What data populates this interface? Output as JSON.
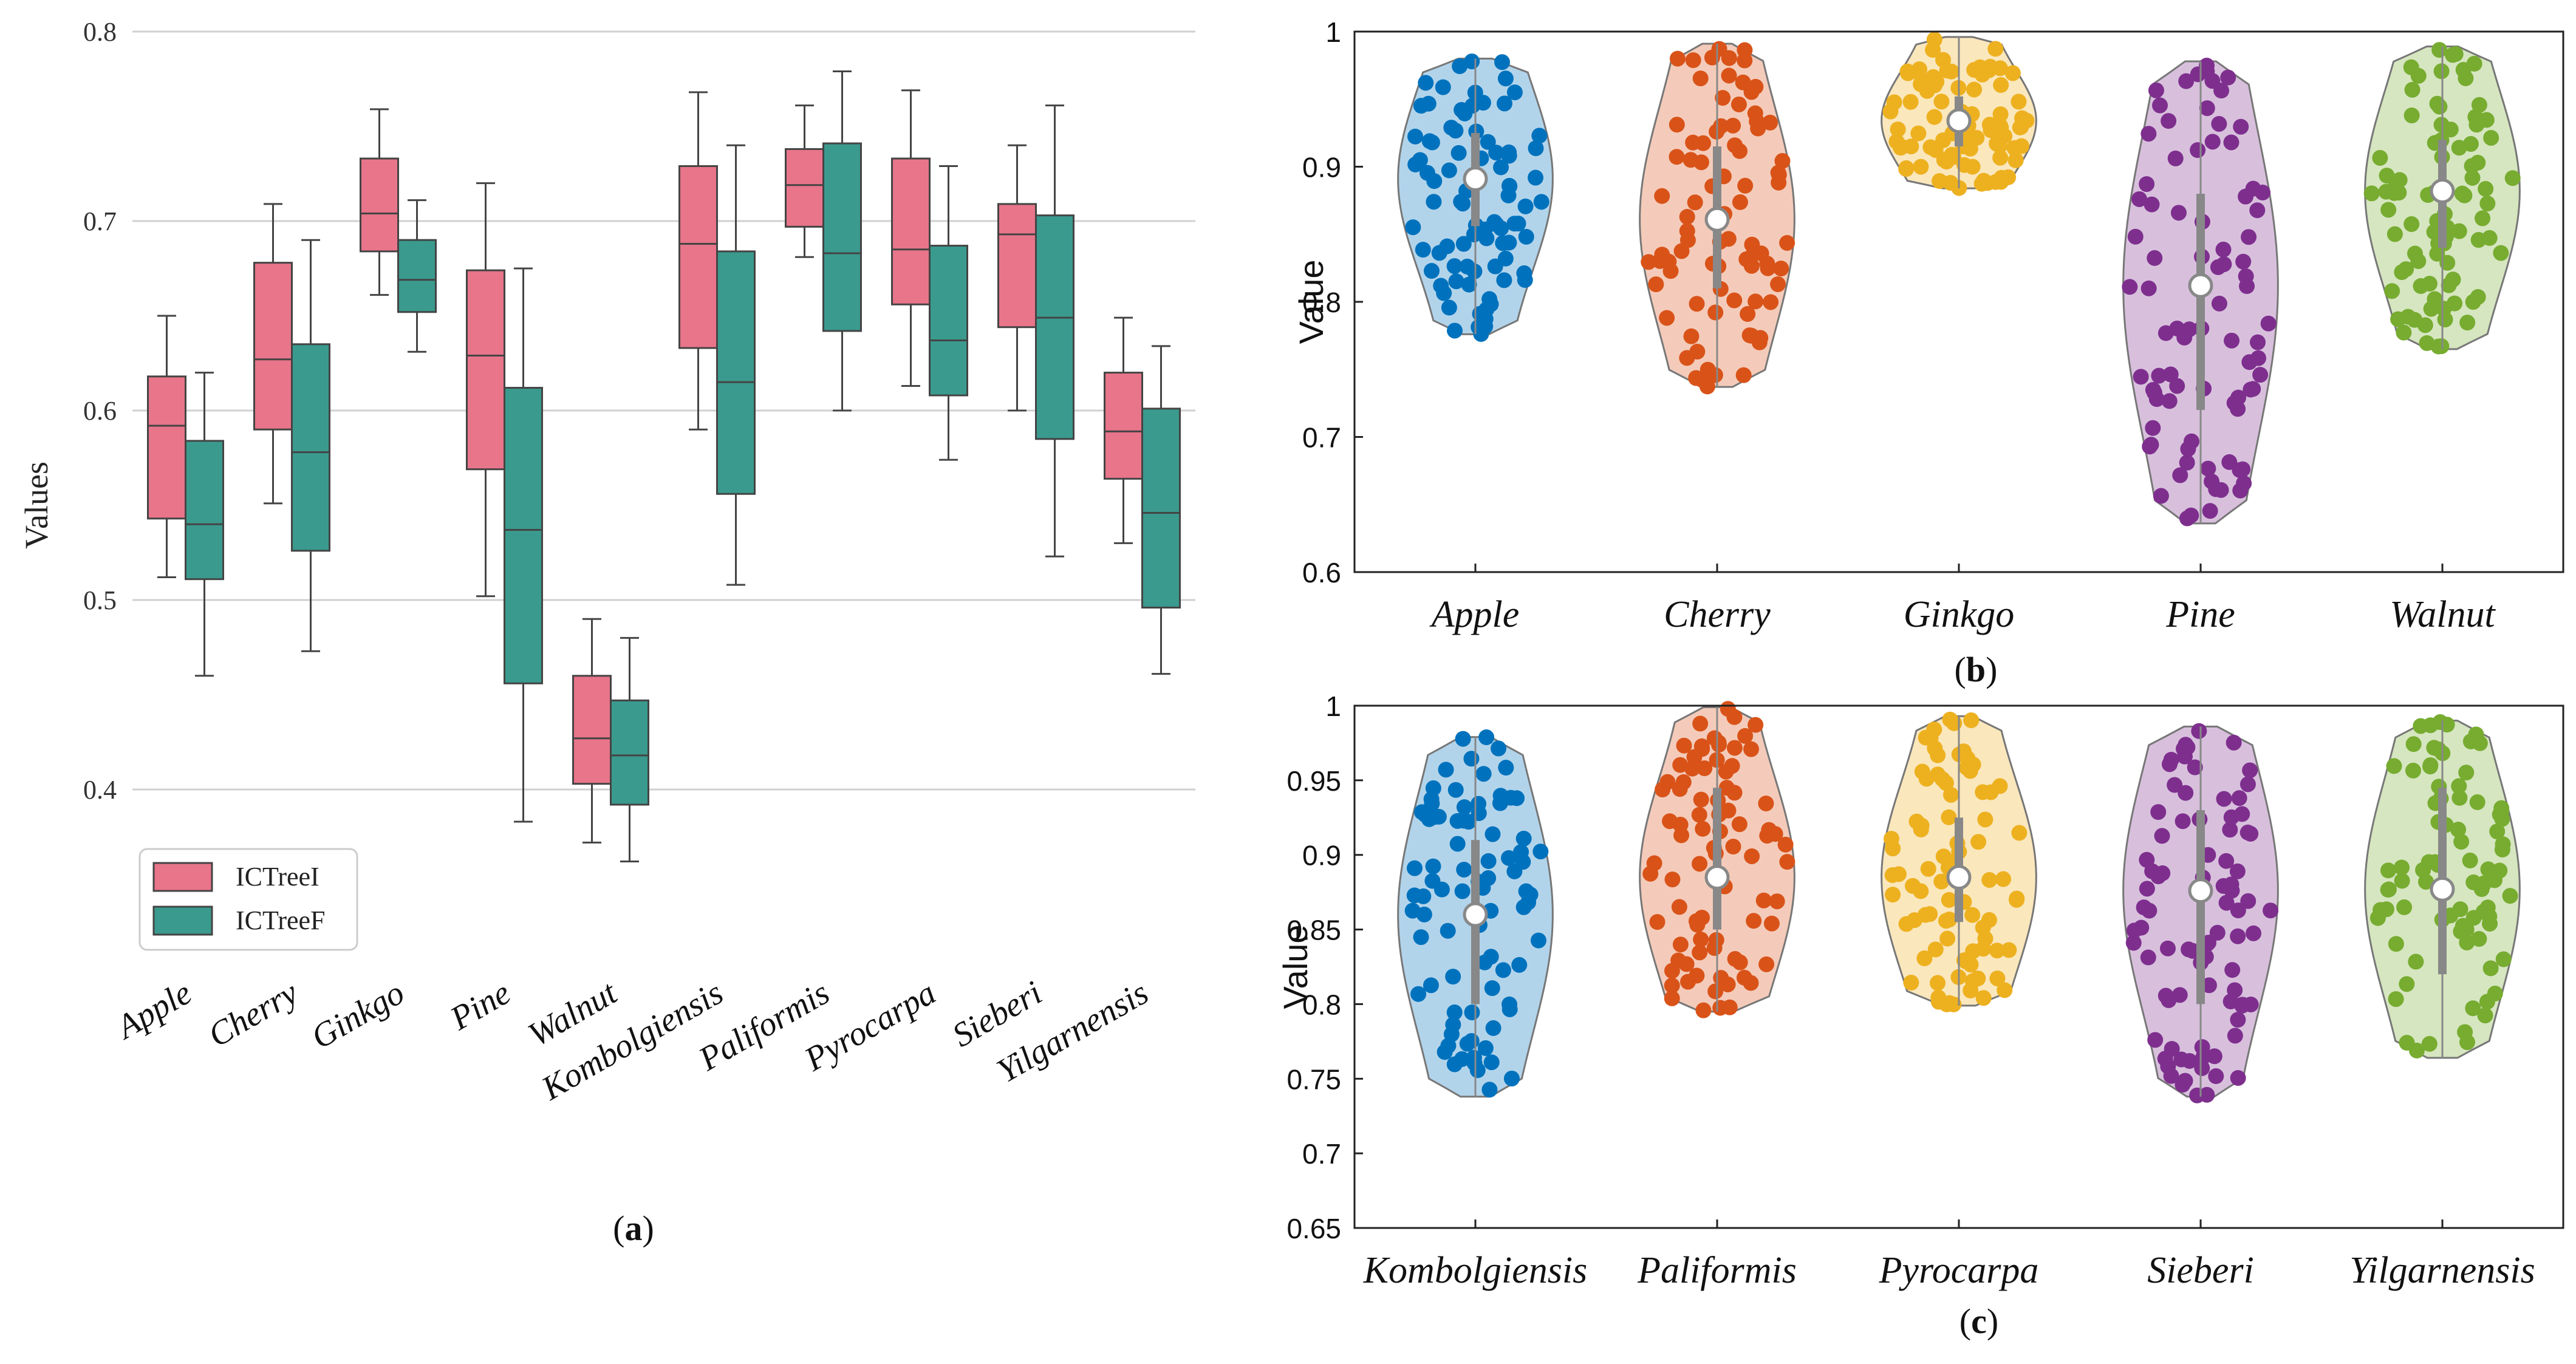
{
  "chart_data": [
    {
      "id": "a",
      "type": "box",
      "panel_label": "a",
      "ylabel": "Values",
      "ylim": [
        0.3,
        0.8
      ],
      "yticks": [
        "0.4",
        "0.5",
        "0.6",
        "0.7",
        "0.8"
      ],
      "grid": true,
      "legend_position": "bottom-left",
      "categories": [
        "Apple",
        "Cherry",
        "Ginkgo",
        "Pine",
        "Walnut",
        "Kombolgiensis",
        "Paliformis",
        "Pyrocarpa",
        "Sieberi",
        "Yilgarnensis"
      ],
      "series": [
        {
          "name": "ICTreeI",
          "color": "#E8758A",
          "boxes": [
            {
              "min": 0.512,
              "q1": 0.543,
              "median": 0.592,
              "q3": 0.618,
              "max": 0.65
            },
            {
              "min": 0.551,
              "q1": 0.59,
              "median": 0.627,
              "q3": 0.678,
              "max": 0.709
            },
            {
              "min": 0.661,
              "q1": 0.684,
              "median": 0.704,
              "q3": 0.733,
              "max": 0.759
            },
            {
              "min": 0.502,
              "q1": 0.569,
              "median": 0.629,
              "q3": 0.674,
              "max": 0.72
            },
            {
              "min": 0.372,
              "q1": 0.403,
              "median": 0.427,
              "q3": 0.46,
              "max": 0.49
            },
            {
              "min": 0.59,
              "q1": 0.633,
              "median": 0.688,
              "q3": 0.729,
              "max": 0.768
            },
            {
              "min": 0.681,
              "q1": 0.697,
              "median": 0.719,
              "q3": 0.738,
              "max": 0.761
            },
            {
              "min": 0.613,
              "q1": 0.656,
              "median": 0.685,
              "q3": 0.733,
              "max": 0.769
            },
            {
              "min": 0.6,
              "q1": 0.644,
              "median": 0.693,
              "q3": 0.709,
              "max": 0.74
            },
            {
              "min": 0.53,
              "q1": 0.564,
              "median": 0.589,
              "q3": 0.62,
              "max": 0.649
            }
          ]
        },
        {
          "name": "ICTreeF",
          "color": "#3A9A8E",
          "boxes": [
            {
              "min": 0.46,
              "q1": 0.511,
              "median": 0.54,
              "q3": 0.584,
              "max": 0.62
            },
            {
              "min": 0.473,
              "q1": 0.526,
              "median": 0.578,
              "q3": 0.635,
              "max": 0.69
            },
            {
              "min": 0.631,
              "q1": 0.652,
              "median": 0.669,
              "q3": 0.69,
              "max": 0.711
            },
            {
              "min": 0.383,
              "q1": 0.456,
              "median": 0.537,
              "q3": 0.612,
              "max": 0.675
            },
            {
              "min": 0.362,
              "q1": 0.392,
              "median": 0.418,
              "q3": 0.447,
              "max": 0.48
            },
            {
              "min": 0.508,
              "q1": 0.556,
              "median": 0.615,
              "q3": 0.684,
              "max": 0.74
            },
            {
              "min": 0.6,
              "q1": 0.642,
              "median": 0.683,
              "q3": 0.741,
              "max": 0.779
            },
            {
              "min": 0.574,
              "q1": 0.608,
              "median": 0.637,
              "q3": 0.687,
              "max": 0.729
            },
            {
              "min": 0.523,
              "q1": 0.585,
              "median": 0.649,
              "q3": 0.703,
              "max": 0.761
            },
            {
              "min": 0.461,
              "q1": 0.496,
              "median": 0.546,
              "q3": 0.601,
              "max": 0.634
            }
          ]
        }
      ]
    },
    {
      "id": "b",
      "type": "violin",
      "panel_label": "b",
      "ylabel": "Value",
      "ylim": [
        0.6,
        1.0
      ],
      "yticks": [
        "0.6",
        "0.7",
        "0.8",
        "0.9",
        "1"
      ],
      "categories": [
        "Apple",
        "Cherry",
        "Ginkgo",
        "Pine",
        "Walnut"
      ],
      "colors": [
        "#0072BD",
        "#D95319",
        "#EDB120",
        "#7E2F8E",
        "#77AC30"
      ],
      "median": [
        0.891,
        0.861,
        0.934,
        0.812,
        0.882
      ],
      "range": [
        [
          0.776,
          0.98
        ],
        [
          0.737,
          0.991
        ],
        [
          0.884,
          0.996
        ],
        [
          0.636,
          0.978
        ],
        [
          0.765,
          0.989
        ]
      ],
      "iqr": [
        [
          0.856,
          0.925
        ],
        [
          0.81,
          0.915
        ],
        [
          0.915,
          0.952
        ],
        [
          0.72,
          0.88
        ],
        [
          0.84,
          0.92
        ]
      ]
    },
    {
      "id": "c",
      "type": "violin",
      "panel_label": "c",
      "ylabel": "Value",
      "ylim": [
        0.65,
        1.0
      ],
      "yticks": [
        "0.65",
        "0.7",
        "0.75",
        "0.8",
        "0.85",
        "0.9",
        "0.95",
        "1"
      ],
      "categories": [
        "Kombolgiensis",
        "Paliformis",
        "Pyrocarpa",
        "Sieberi",
        "Yilgarnensis"
      ],
      "colors": [
        "#0072BD",
        "#D95319",
        "#EDB120",
        "#7E2F8E",
        "#77AC30"
      ],
      "median": [
        0.86,
        0.885,
        0.885,
        0.876,
        0.877
      ],
      "range": [
        [
          0.738,
          0.979
        ],
        [
          0.795,
          0.999
        ],
        [
          0.799,
          0.993
        ],
        [
          0.738,
          0.986
        ],
        [
          0.764,
          0.99
        ]
      ],
      "iqr": [
        [
          0.8,
          0.91
        ],
        [
          0.85,
          0.945
        ],
        [
          0.855,
          0.925
        ],
        [
          0.8,
          0.93
        ],
        [
          0.82,
          0.945
        ]
      ]
    }
  ]
}
